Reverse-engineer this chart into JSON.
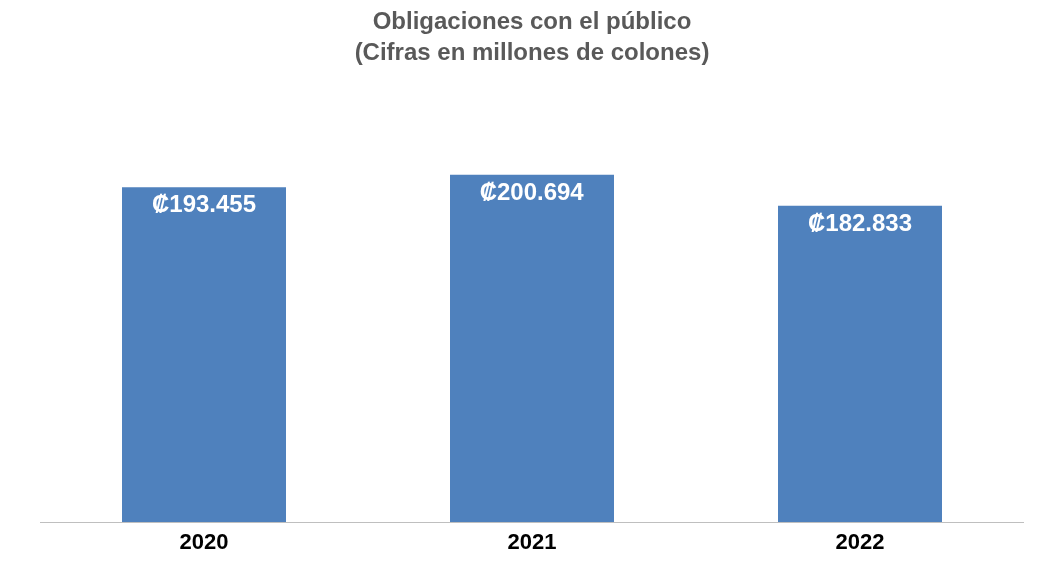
{
  "chart_data": {
    "type": "bar",
    "title": "Obligaciones con el público",
    "subtitle": "(Cifras en millones de colones)",
    "categories": [
      "2020",
      "2021",
      "2022"
    ],
    "values": [
      193455,
      200694,
      182833
    ],
    "value_labels": [
      "₡193.455",
      "₡200.694",
      "₡182.833"
    ],
    "color": "#4f81bd"
  }
}
